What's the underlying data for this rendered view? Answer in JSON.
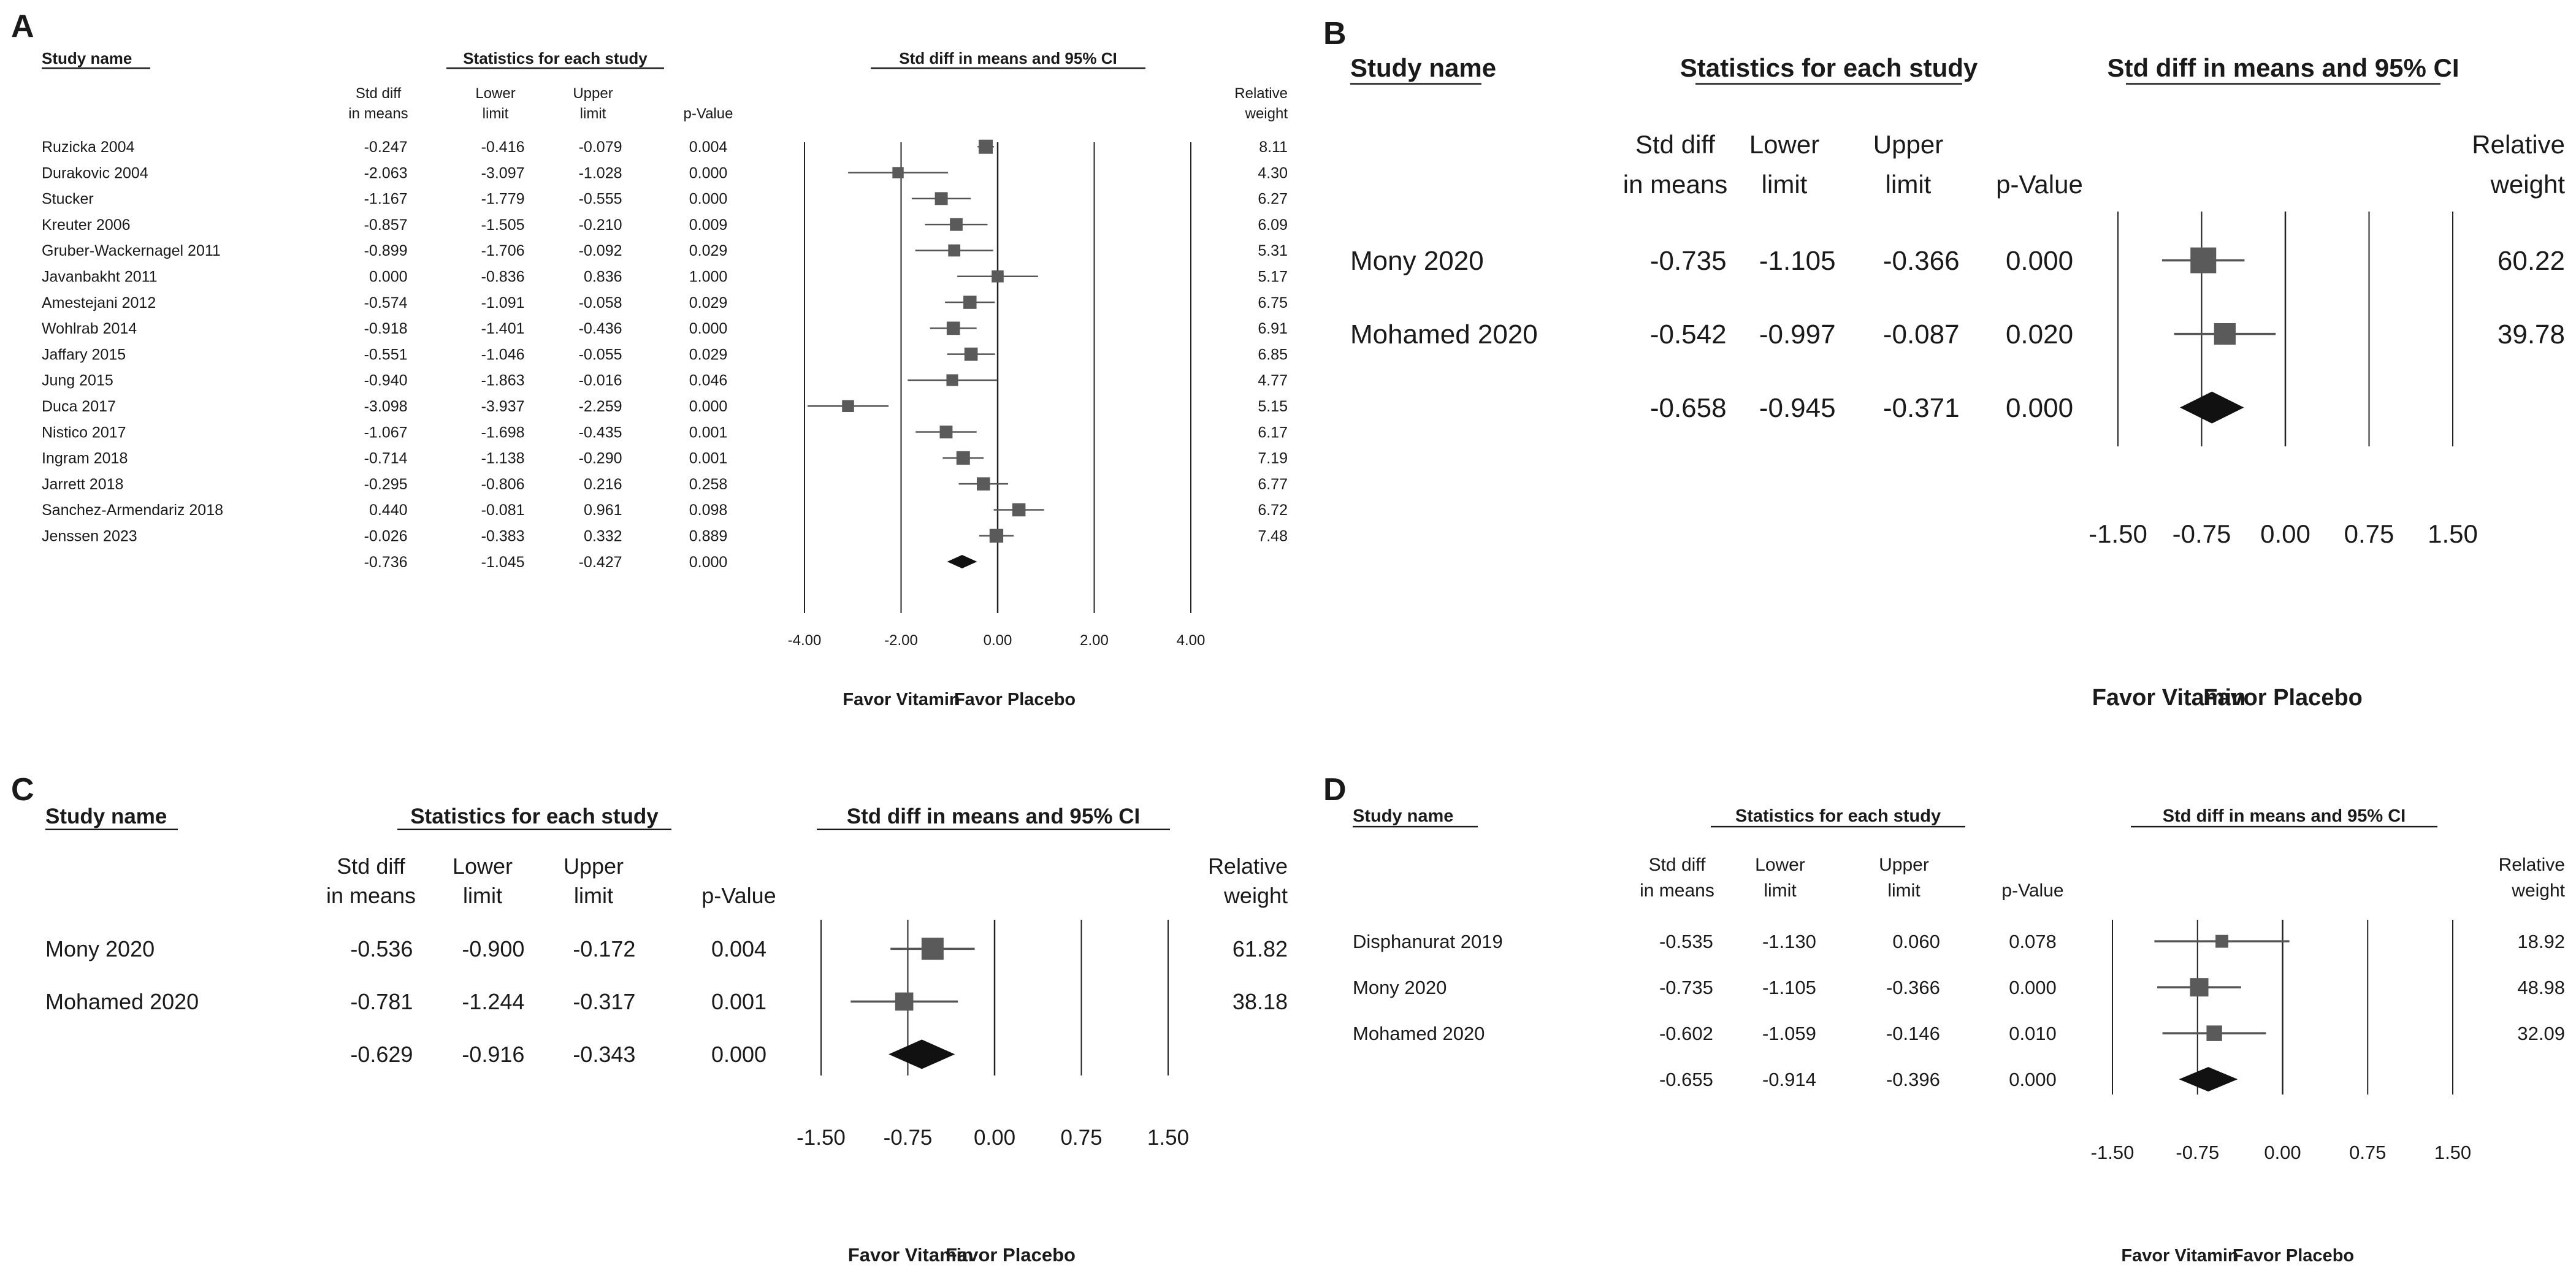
{
  "figure": {
    "headers": {
      "study": "Study name",
      "stats": "Statistics for each study",
      "ci": "Std diff in means and 95% CI",
      "col_sdm": [
        "Std diff",
        "in means"
      ],
      "col_lower": [
        "Lower",
        "limit"
      ],
      "col_upper": [
        "Upper",
        "limit"
      ],
      "col_p": "p-Value",
      "col_weight": [
        "Relative",
        "weight"
      ]
    },
    "favor_left": "Favor Vitamin",
    "favor_right": "Favor Placebo"
  },
  "chart_data": [
    {
      "type": "forest",
      "panel": "A",
      "xlim": [
        -4.0,
        4.0
      ],
      "ticks": [
        "-4.00",
        "-2.00",
        "0.00",
        "2.00",
        "4.00"
      ],
      "studies": [
        {
          "name": "Ruzicka 2004",
          "sdm": "-0.247",
          "lower": "-0.416",
          "upper": "-0.079",
          "p": "0.004",
          "weight": "8.11"
        },
        {
          "name": "Durakovic 2004",
          "sdm": "-2.063",
          "lower": "-3.097",
          "upper": "-1.028",
          "p": "0.000",
          "weight": "4.30"
        },
        {
          "name": "Stucker",
          "sdm": "-1.167",
          "lower": "-1.779",
          "upper": "-0.555",
          "p": "0.000",
          "weight": "6.27"
        },
        {
          "name": "Kreuter 2006",
          "sdm": "-0.857",
          "lower": "-1.505",
          "upper": "-0.210",
          "p": "0.009",
          "weight": "6.09"
        },
        {
          "name": "Gruber-Wackernagel 2011",
          "sdm": "-0.899",
          "lower": "-1.706",
          "upper": "-0.092",
          "p": "0.029",
          "weight": "5.31"
        },
        {
          "name": "Javanbakht 2011",
          "sdm": "0.000",
          "lower": "-0.836",
          "upper": "0.836",
          "p": "1.000",
          "weight": "5.17"
        },
        {
          "name": "Amestejani 2012",
          "sdm": "-0.574",
          "lower": "-1.091",
          "upper": "-0.058",
          "p": "0.029",
          "weight": "6.75"
        },
        {
          "name": "Wohlrab 2014",
          "sdm": "-0.918",
          "lower": "-1.401",
          "upper": "-0.436",
          "p": "0.000",
          "weight": "6.91"
        },
        {
          "name": "Jaffary 2015",
          "sdm": "-0.551",
          "lower": "-1.046",
          "upper": "-0.055",
          "p": "0.029",
          "weight": "6.85"
        },
        {
          "name": "Jung 2015",
          "sdm": "-0.940",
          "lower": "-1.863",
          "upper": "-0.016",
          "p": "0.046",
          "weight": "4.77"
        },
        {
          "name": "Duca 2017",
          "sdm": "-3.098",
          "lower": "-3.937",
          "upper": "-2.259",
          "p": "0.000",
          "weight": "5.15"
        },
        {
          "name": "Nistico 2017",
          "sdm": "-1.067",
          "lower": "-1.698",
          "upper": "-0.435",
          "p": "0.001",
          "weight": "6.17"
        },
        {
          "name": "Ingram 2018",
          "sdm": "-0.714",
          "lower": "-1.138",
          "upper": "-0.290",
          "p": "0.001",
          "weight": "7.19"
        },
        {
          "name": "Jarrett 2018",
          "sdm": "-0.295",
          "lower": "-0.806",
          "upper": "0.216",
          "p": "0.258",
          "weight": "6.77"
        },
        {
          "name": "Sanchez-Armendariz 2018",
          "sdm": "0.440",
          "lower": "-0.081",
          "upper": "0.961",
          "p": "0.098",
          "weight": "6.72"
        },
        {
          "name": "Jenssen 2023",
          "sdm": "-0.026",
          "lower": "-0.383",
          "upper": "0.332",
          "p": "0.889",
          "weight": "7.48"
        }
      ],
      "pooled": {
        "sdm": "-0.736",
        "lower": "-1.045",
        "upper": "-0.427",
        "p": "0.000"
      }
    },
    {
      "type": "forest",
      "panel": "B",
      "xlim": [
        -1.5,
        1.5
      ],
      "ticks": [
        "-1.50",
        "-0.75",
        "0.00",
        "0.75",
        "1.50"
      ],
      "studies": [
        {
          "name": "Mony 2020",
          "sdm": "-0.735",
          "lower": "-1.105",
          "upper": "-0.366",
          "p": "0.000",
          "weight": "60.22"
        },
        {
          "name": "Mohamed 2020",
          "sdm": "-0.542",
          "lower": "-0.997",
          "upper": "-0.087",
          "p": "0.020",
          "weight": "39.78"
        }
      ],
      "pooled": {
        "sdm": "-0.658",
        "lower": "-0.945",
        "upper": "-0.371",
        "p": "0.000"
      }
    },
    {
      "type": "forest",
      "panel": "C",
      "xlim": [
        -1.5,
        1.5
      ],
      "ticks": [
        "-1.50",
        "-0.75",
        "0.00",
        "0.75",
        "1.50"
      ],
      "studies": [
        {
          "name": "Mony 2020",
          "sdm": "-0.536",
          "lower": "-0.900",
          "upper": "-0.172",
          "p": "0.004",
          "weight": "61.82"
        },
        {
          "name": "Mohamed 2020",
          "sdm": "-0.781",
          "lower": "-1.244",
          "upper": "-0.317",
          "p": "0.001",
          "weight": "38.18"
        }
      ],
      "pooled": {
        "sdm": "-0.629",
        "lower": "-0.916",
        "upper": "-0.343",
        "p": "0.000"
      }
    },
    {
      "type": "forest",
      "panel": "D",
      "xlim": [
        -1.5,
        1.5
      ],
      "ticks": [
        "-1.50",
        "-0.75",
        "0.00",
        "0.75",
        "1.50"
      ],
      "studies": [
        {
          "name": "Disphanurat 2019",
          "sdm": "-0.535",
          "lower": "-1.130",
          "upper": "0.060",
          "p": "0.078",
          "weight": "18.92"
        },
        {
          "name": "Mony 2020",
          "sdm": "-0.735",
          "lower": "-1.105",
          "upper": "-0.366",
          "p": "0.000",
          "weight": "48.98"
        },
        {
          "name": "Mohamed 2020",
          "sdm": "-0.602",
          "lower": "-1.059",
          "upper": "-0.146",
          "p": "0.010",
          "weight": "32.09"
        }
      ],
      "pooled": {
        "sdm": "-0.655",
        "lower": "-0.914",
        "upper": "-0.396",
        "p": "0.000"
      }
    }
  ]
}
